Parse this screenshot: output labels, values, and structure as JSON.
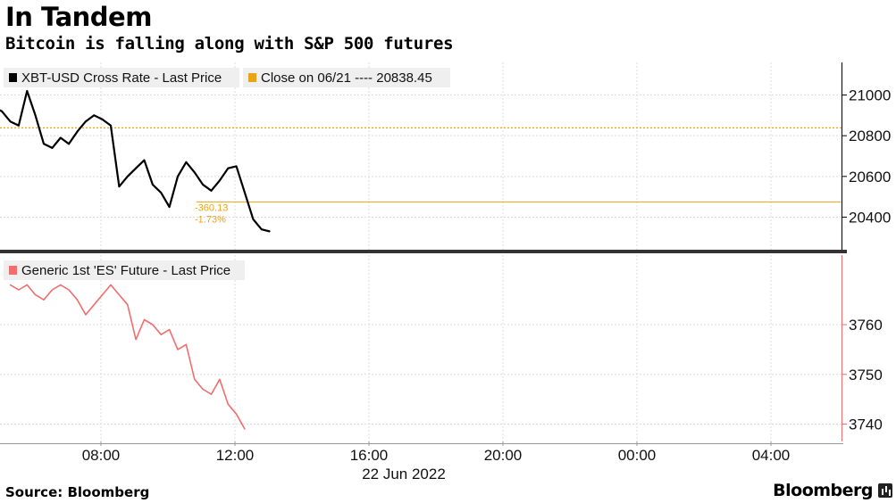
{
  "header": {
    "title": "In Tandem",
    "subtitle": "Bitcoin is falling along with S&P 500 futures"
  },
  "footer": {
    "source": "Source: Bloomberg",
    "brand": "Bloomberg"
  },
  "chart_data": [
    {
      "type": "line",
      "panel": "top",
      "x_axis": {
        "type": "time",
        "ticks": [
          "08:00",
          "12:00",
          "16:00",
          "20:00",
          "00:00",
          "04:00"
        ],
        "date_label": "22 Jun 2022"
      },
      "y_axis": {
        "side": "right",
        "ylim": [
          20240,
          21160
        ],
        "ticks": [
          20400,
          20600,
          20800,
          21000
        ]
      },
      "grid": true,
      "legend": {
        "placement": "top-left",
        "entries": [
          {
            "label": "XBT-USD Cross Rate - Last Price",
            "color": "#000000"
          },
          {
            "label": "Close on 06/21 ---- 20838.45",
            "color": "#e8a317"
          }
        ]
      },
      "reference_line": {
        "value": 20838.45,
        "color": "#e8a317",
        "style": "dotted"
      },
      "last_price_line": {
        "value": 20475,
        "color": "#e8a317",
        "style": "solid"
      },
      "annotations": [
        {
          "text": "-360.13",
          "color": "#e8a317"
        },
        {
          "text": "-1.73%",
          "color": "#e8a317"
        }
      ],
      "series": [
        {
          "name": "XBT-USD Cross Rate - Last Price",
          "color": "#000000",
          "x": [
            "04:00",
            "04:15",
            "04:30",
            "04:45",
            "05:00",
            "05:15",
            "05:30",
            "05:45",
            "06:00",
            "06:15",
            "06:30",
            "06:45",
            "07:00",
            "07:15",
            "07:30",
            "07:45",
            "08:00",
            "08:15",
            "08:30",
            "08:45",
            "09:00",
            "09:15",
            "09:30",
            "09:45",
            "10:00",
            "10:15",
            "10:30",
            "10:45",
            "11:00",
            "11:15",
            "11:30",
            "11:45",
            "12:00",
            "12:15",
            "12:30",
            "12:45"
          ],
          "values": [
            20860,
            20910,
            20940,
            20920,
            20870,
            20850,
            21020,
            20900,
            20760,
            20740,
            20790,
            20760,
            20820,
            20870,
            20900,
            20880,
            20850,
            20550,
            20600,
            20640,
            20680,
            20560,
            20520,
            20450,
            20600,
            20670,
            20620,
            20560,
            20530,
            20580,
            20640,
            20650,
            20520,
            20390,
            20340,
            20330
          ]
        }
      ]
    },
    {
      "type": "line",
      "panel": "bottom",
      "y_axis": {
        "side": "right",
        "ylim": [
          3736.5,
          3774
        ],
        "ticks": [
          3740,
          3750,
          3760
        ]
      },
      "grid": true,
      "legend": {
        "placement": "top-left",
        "entries": [
          {
            "label": "Generic 1st 'ES' Future - Last Price",
            "color": "#f26d6d"
          }
        ]
      },
      "series": [
        {
          "name": "Generic 1st 'ES' Future - Last Price",
          "color": "#f26d6d",
          "x": [
            "05:00",
            "05:15",
            "05:30",
            "05:45",
            "06:00",
            "06:15",
            "06:30",
            "06:45",
            "07:00",
            "07:15",
            "07:30",
            "07:45",
            "08:00",
            "08:15",
            "08:30",
            "08:45",
            "09:00",
            "09:15",
            "09:30",
            "09:45",
            "10:00",
            "10:15",
            "10:30",
            "10:45",
            "11:00",
            "11:15",
            "11:30",
            "11:45",
            "12:00"
          ],
          "values": [
            3768,
            3767,
            3768,
            3766,
            3765,
            3767,
            3768,
            3767,
            3765,
            3762,
            3764,
            3766,
            3768,
            3766,
            3764,
            3757,
            3761,
            3760,
            3758,
            3759,
            3755,
            3756,
            3749,
            3747,
            3746,
            3749,
            3744,
            3742,
            3739
          ]
        }
      ]
    }
  ]
}
